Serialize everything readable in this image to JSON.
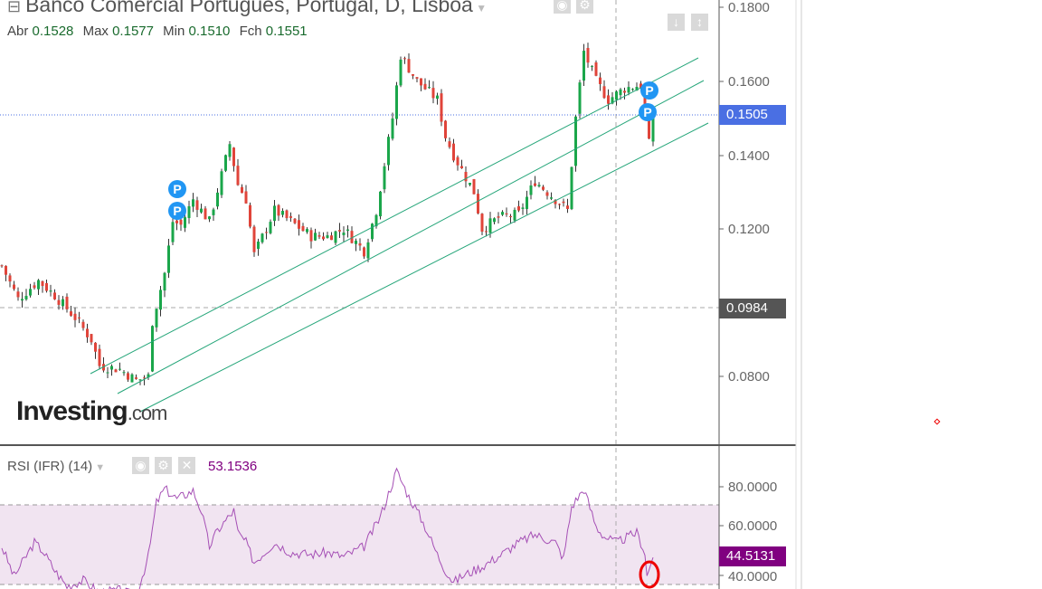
{
  "header": {
    "title": "Banco Comercial Portugues, Portugal, D, Lisboa",
    "ohlc": [
      {
        "label": "Abr",
        "value": "0.1528"
      },
      {
        "label": "Max",
        "value": "0.1577"
      },
      {
        "label": "Min",
        "value": "0.1510"
      },
      {
        "label": "Fch",
        "value": "0.1551"
      }
    ]
  },
  "rsi_header": {
    "label": "RSI (IFR) (14)",
    "value": "53.1536"
  },
  "logo": {
    "main": "Investing",
    "suffix": ".com"
  },
  "price_axis": {
    "ticks": [
      "0.1800",
      "0.1600",
      "0.1400",
      "0.1200",
      "0.0800"
    ],
    "last_price": "0.1505",
    "crosshair_price": "0.0984",
    "last_color": "#4a6fe3",
    "crosshair_color": "#555555"
  },
  "rsi_axis": {
    "ticks": [
      "80.0000",
      "60.0000",
      "40.0000"
    ],
    "value": "44.5131",
    "color": "#800080",
    "band": [
      30,
      70
    ]
  },
  "markers": [
    "P",
    "P",
    "P",
    "P"
  ],
  "chart_data": {
    "type": "candlestick",
    "ylim": [
      0.07,
      0.18
    ],
    "price_path": [
      [
        0,
        0.11
      ],
      [
        4,
        0.101
      ],
      [
        9,
        0.106
      ],
      [
        13,
        0.102
      ],
      [
        18,
        0.096
      ],
      [
        22,
        0.09
      ],
      [
        24,
        0.083
      ],
      [
        29,
        0.082
      ],
      [
        33,
        0.079
      ],
      [
        36,
        0.08
      ],
      [
        37,
        0.095
      ],
      [
        40,
        0.108
      ],
      [
        42,
        0.122
      ],
      [
        44,
        0.121
      ],
      [
        47,
        0.128
      ],
      [
        51,
        0.122
      ],
      [
        56,
        0.143
      ],
      [
        58,
        0.132
      ],
      [
        60,
        0.128
      ],
      [
        62,
        0.113
      ],
      [
        67,
        0.125
      ],
      [
        71,
        0.122
      ],
      [
        76,
        0.118
      ],
      [
        80,
        0.118
      ],
      [
        84,
        0.12
      ],
      [
        89,
        0.114
      ],
      [
        92,
        0.125
      ],
      [
        96,
        0.15
      ],
      [
        98,
        0.167
      ],
      [
        102,
        0.16
      ],
      [
        107,
        0.155
      ],
      [
        109,
        0.145
      ],
      [
        111,
        0.14
      ],
      [
        116,
        0.13
      ],
      [
        118,
        0.12
      ],
      [
        122,
        0.123
      ],
      [
        127,
        0.124
      ],
      [
        131,
        0.133
      ],
      [
        136,
        0.128
      ],
      [
        139,
        0.125
      ],
      [
        141,
        0.15
      ],
      [
        143,
        0.168
      ],
      [
        146,
        0.16
      ],
      [
        149,
        0.155
      ],
      [
        153,
        0.158
      ],
      [
        157,
        0.159
      ],
      [
        159,
        0.143
      ],
      [
        160,
        0.1505
      ]
    ],
    "rsi": {
      "ylim": [
        30,
        85
      ],
      "path": [
        [
          0,
          50
        ],
        [
          3,
          35
        ],
        [
          8,
          52
        ],
        [
          10,
          48
        ],
        [
          13,
          38
        ],
        [
          16,
          30
        ],
        [
          20,
          33
        ],
        [
          24,
          27
        ],
        [
          29,
          28
        ],
        [
          33,
          25
        ],
        [
          36,
          45
        ],
        [
          38,
          72
        ],
        [
          40,
          79
        ],
        [
          43,
          74
        ],
        [
          47,
          78
        ],
        [
          49,
          68
        ],
        [
          51,
          50
        ],
        [
          53,
          58
        ],
        [
          57,
          68
        ],
        [
          58,
          57
        ],
        [
          60,
          52
        ],
        [
          62,
          42
        ],
        [
          67,
          52
        ],
        [
          71,
          47
        ],
        [
          76,
          46
        ],
        [
          80,
          47
        ],
        [
          84,
          45
        ],
        [
          89,
          50
        ],
        [
          93,
          65
        ],
        [
          97,
          88
        ],
        [
          100,
          75
        ],
        [
          102,
          68
        ],
        [
          104,
          60
        ],
        [
          107,
          46
        ],
        [
          109,
          38
        ],
        [
          111,
          32
        ],
        [
          113,
          35
        ],
        [
          118,
          40
        ],
        [
          122,
          45
        ],
        [
          127,
          52
        ],
        [
          131,
          56
        ],
        [
          136,
          52
        ],
        [
          138,
          44
        ],
        [
          140,
          70
        ],
        [
          143,
          79
        ],
        [
          146,
          60
        ],
        [
          148,
          55
        ],
        [
          151,
          52
        ],
        [
          156,
          57
        ],
        [
          158,
          47
        ],
        [
          158.5,
          35
        ],
        [
          160,
          44.5
        ]
      ]
    }
  }
}
